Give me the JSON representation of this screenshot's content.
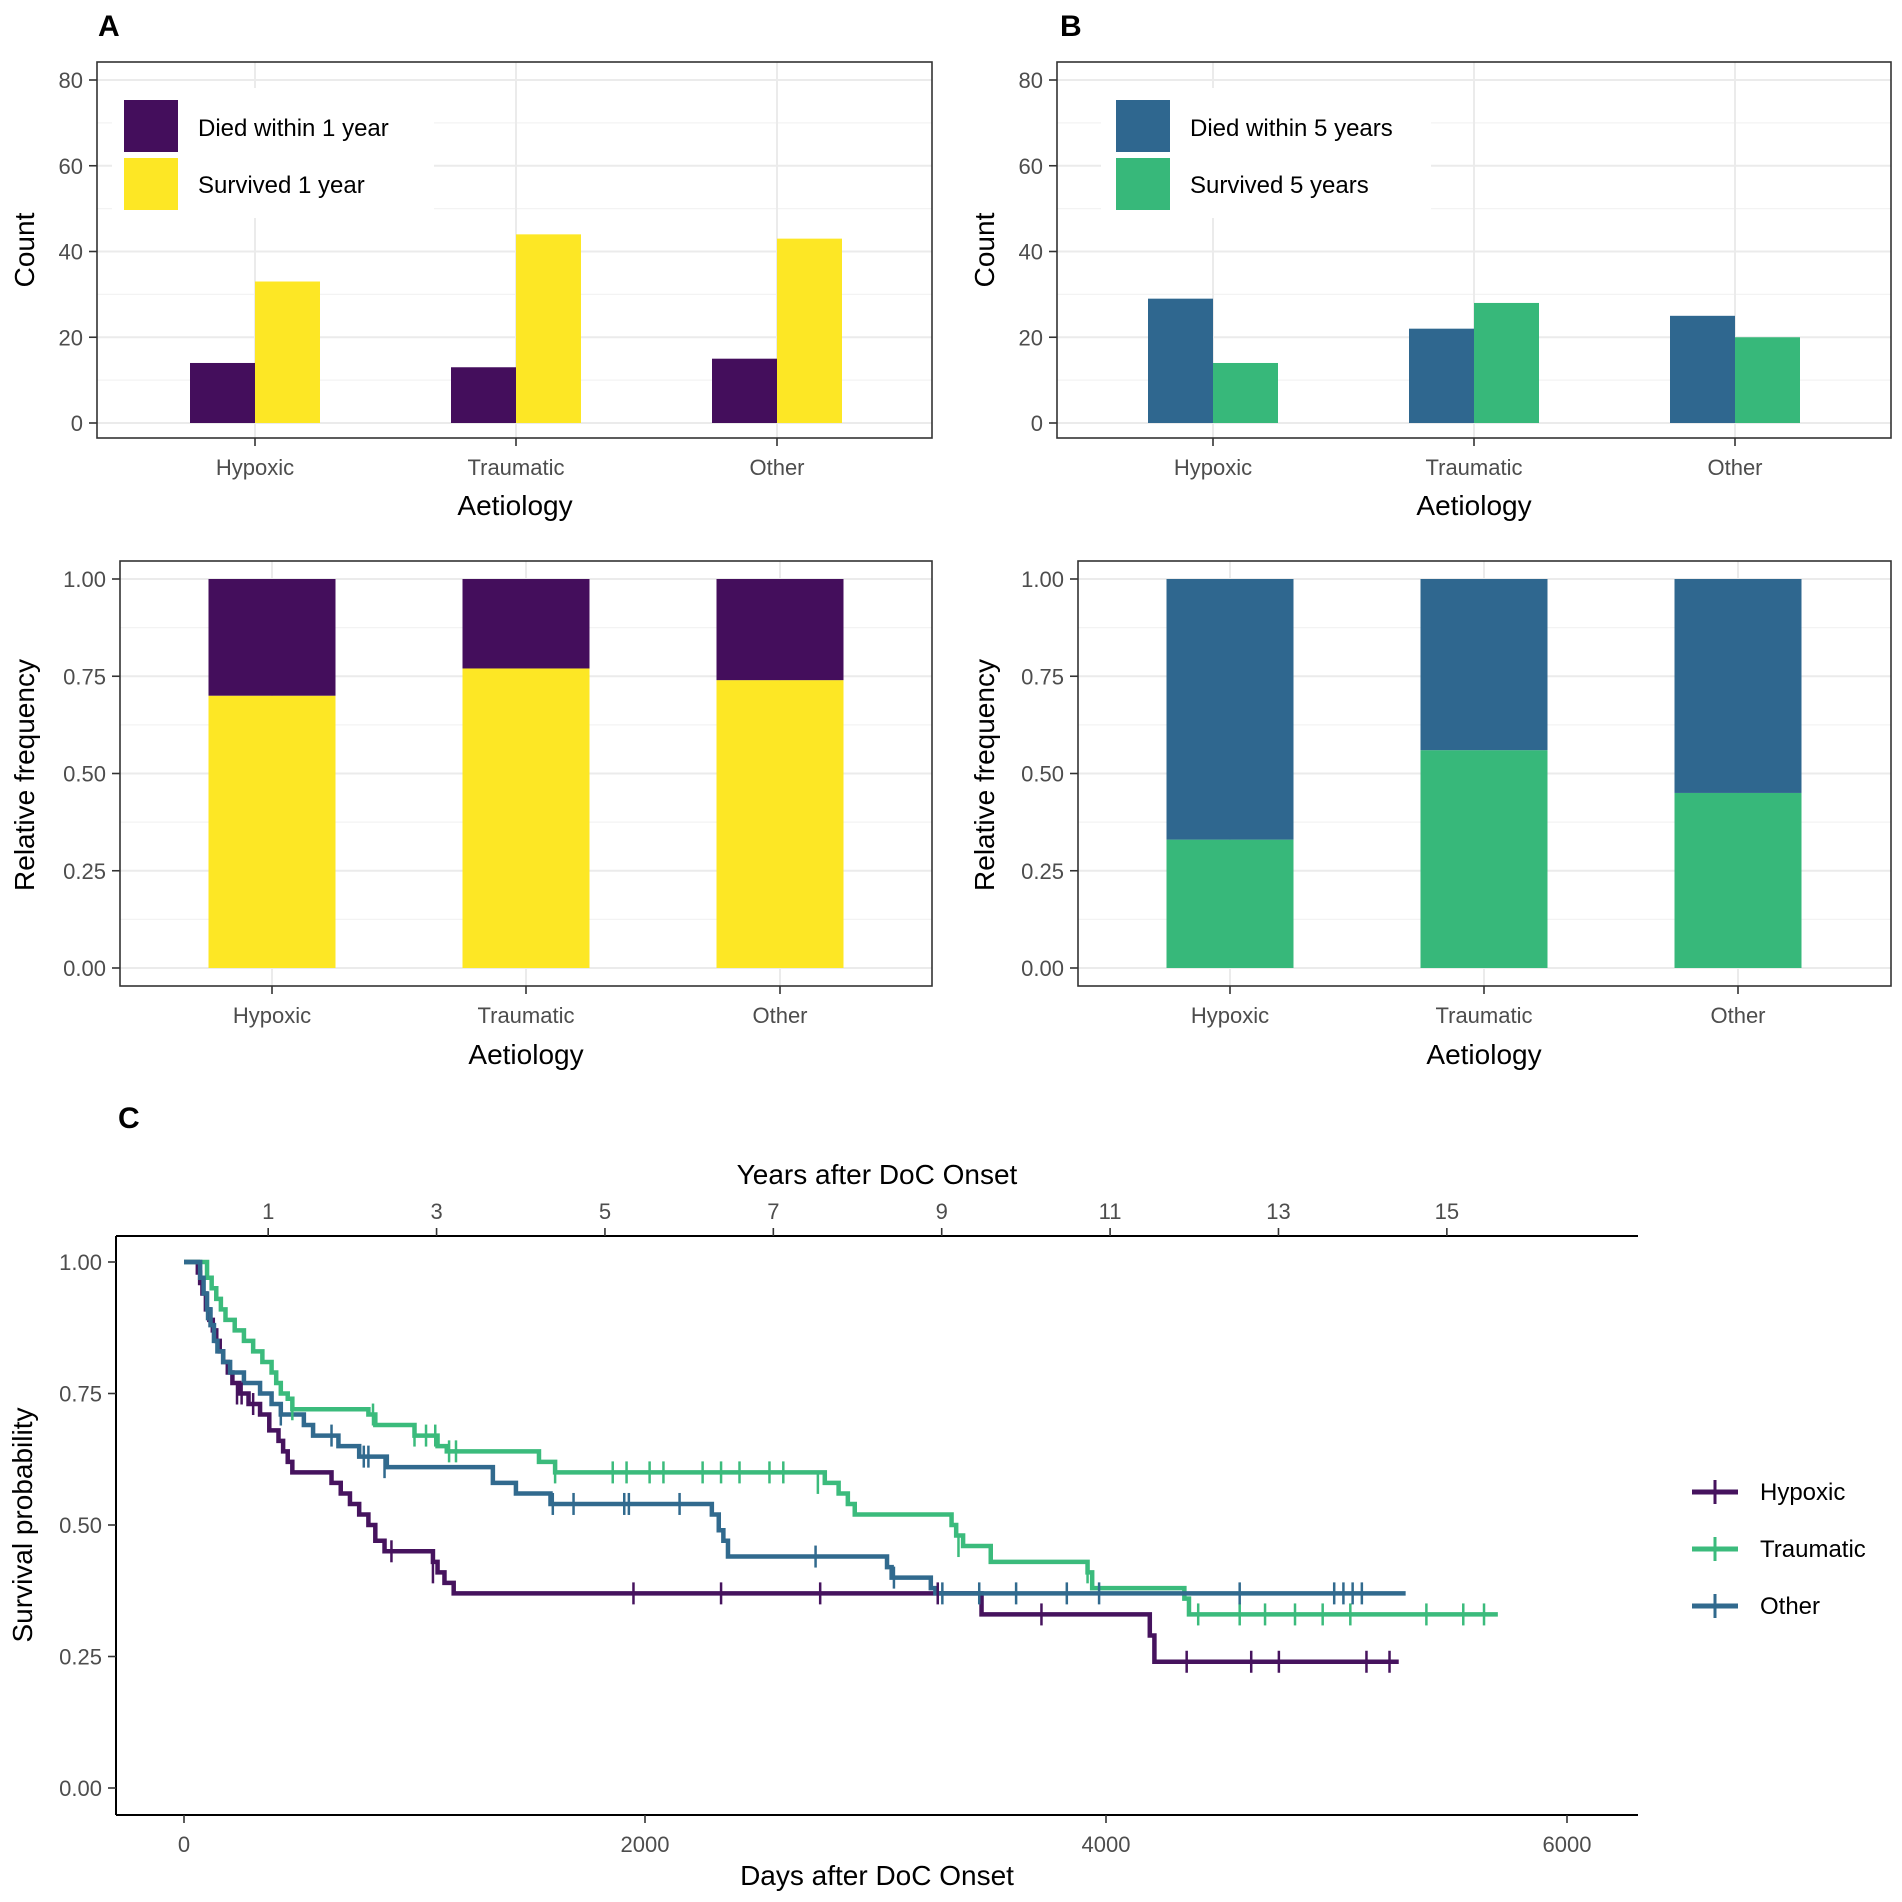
{
  "panels": {
    "A": {
      "letter": "A"
    },
    "B": {
      "letter": "B"
    },
    "C": {
      "letter": "C"
    }
  },
  "colors": {
    "died": "#440e5c",
    "survived_1y": "#fde725",
    "died_5y": "#2f678f",
    "survived_5y": "#37b87a",
    "hypoxic": "#46135e",
    "traumatic": "#3bbb7c",
    "other": "#316a8e"
  },
  "chart_data": [
    {
      "id": "A-count",
      "type": "bar",
      "title": "",
      "xlabel": "Aetiology",
      "ylabel": "Count",
      "categories": [
        "Hypoxic",
        "Traumatic",
        "Other"
      ],
      "ylim": [
        0,
        80
      ],
      "yticks": [
        "0",
        "20",
        "40",
        "60",
        "80"
      ],
      "series": [
        {
          "name": "Died within 1 year",
          "values": [
            14,
            13,
            15
          ]
        },
        {
          "name": "Survived 1 year",
          "values": [
            33,
            44,
            43
          ]
        }
      ]
    },
    {
      "id": "B-count",
      "type": "bar",
      "title": "",
      "xlabel": "Aetiology",
      "ylabel": "Count",
      "categories": [
        "Hypoxic",
        "Traumatic",
        "Other"
      ],
      "ylim": [
        0,
        80
      ],
      "yticks": [
        "0",
        "20",
        "40",
        "60",
        "80"
      ],
      "series": [
        {
          "name": "Died within 5 years",
          "values": [
            29,
            22,
            25
          ]
        },
        {
          "name": "Survived 5 years",
          "values": [
            14,
            28,
            20
          ]
        }
      ]
    },
    {
      "id": "A-relative",
      "type": "bar",
      "stacked": true,
      "xlabel": "Aetiology",
      "ylabel": "Relative frequency",
      "categories": [
        "Hypoxic",
        "Traumatic",
        "Other"
      ],
      "ylim": [
        0,
        1
      ],
      "yticks": [
        "0.00",
        "0.25",
        "0.50",
        "0.75",
        "1.00"
      ],
      "series": [
        {
          "name": "Survived 1 year",
          "values": [
            0.7,
            0.77,
            0.74
          ]
        },
        {
          "name": "Died within 1 year",
          "values": [
            0.3,
            0.23,
            0.26
          ]
        }
      ]
    },
    {
      "id": "B-relative",
      "type": "bar",
      "stacked": true,
      "xlabel": "Aetiology",
      "ylabel": "Relative frequency",
      "categories": [
        "Hypoxic",
        "Traumatic",
        "Other"
      ],
      "ylim": [
        0,
        1
      ],
      "yticks": [
        "0.00",
        "0.25",
        "0.50",
        "0.75",
        "1.00"
      ],
      "series": [
        {
          "name": "Survived 5 years",
          "values": [
            0.33,
            0.56,
            0.45
          ]
        },
        {
          "name": "Died within 5 years",
          "values": [
            0.67,
            0.44,
            0.55
          ]
        }
      ]
    },
    {
      "id": "C-survival",
      "type": "line",
      "step": true,
      "xlabel": "Days after DoC Onset",
      "x2label": "Years after DoC Onset",
      "ylabel": "Survival probability",
      "xlim": [
        -300,
        6300
      ],
      "ylim": [
        0,
        1
      ],
      "xticks": [
        0,
        2000,
        4000,
        6000
      ],
      "xtick_labels": [
        "0",
        "2000",
        "4000",
        "6000"
      ],
      "x2ticks": [
        1,
        3,
        5,
        7,
        9,
        11,
        13,
        15
      ],
      "x2tick_labels": [
        "1",
        "3",
        "5",
        "7",
        "9",
        "11",
        "13",
        "15"
      ],
      "yticks": [
        "0.00",
        "0.25",
        "0.50",
        "0.75",
        "1.00"
      ],
      "legend": [
        "Hypoxic",
        "Traumatic",
        "Other"
      ],
      "series": [
        {
          "name": "Hypoxic",
          "steps": [
            [
              0,
              1.0
            ],
            [
              60,
              0.98
            ],
            [
              70,
              0.96
            ],
            [
              80,
              0.94
            ],
            [
              95,
              0.91
            ],
            [
              110,
              0.89
            ],
            [
              125,
              0.87
            ],
            [
              140,
              0.85
            ],
            [
              155,
              0.83
            ],
            [
              170,
              0.81
            ],
            [
              190,
              0.79
            ],
            [
              210,
              0.77
            ],
            [
              240,
              0.75
            ],
            [
              280,
              0.73
            ],
            [
              330,
              0.71
            ],
            [
              370,
              0.68
            ],
            [
              410,
              0.66
            ],
            [
              430,
              0.64
            ],
            [
              450,
              0.62
            ],
            [
              470,
              0.6
            ],
            [
              640,
              0.58
            ],
            [
              680,
              0.56
            ],
            [
              720,
              0.54
            ],
            [
              760,
              0.52
            ],
            [
              800,
              0.5
            ],
            [
              830,
              0.47
            ],
            [
              870,
              0.45
            ],
            [
              1080,
              0.43
            ],
            [
              1100,
              0.41
            ],
            [
              1130,
              0.39
            ],
            [
              1170,
              0.37
            ],
            [
              3460,
              0.33
            ],
            [
              4190,
              0.29
            ],
            [
              4210,
              0.24
            ],
            [
              5270,
              0.24
            ]
          ],
          "censors": [
            [
              230,
              0.75
            ],
            [
              250,
              0.75
            ],
            [
              300,
              0.73
            ],
            [
              900,
              0.45
            ],
            [
              1080,
              0.41
            ],
            [
              1950,
              0.37
            ],
            [
              2330,
              0.37
            ],
            [
              2760,
              0.37
            ],
            [
              3270,
              0.37
            ],
            [
              3720,
              0.33
            ],
            [
              4350,
              0.24
            ],
            [
              4630,
              0.24
            ],
            [
              4750,
              0.24
            ],
            [
              5130,
              0.24
            ],
            [
              5230,
              0.24
            ]
          ]
        },
        {
          "name": "Traumatic",
          "steps": [
            [
              0,
              1.0
            ],
            [
              100,
              0.97
            ],
            [
              120,
              0.95
            ],
            [
              140,
              0.93
            ],
            [
              160,
              0.91
            ],
            [
              180,
              0.89
            ],
            [
              220,
              0.87
            ],
            [
              260,
              0.85
            ],
            [
              300,
              0.83
            ],
            [
              340,
              0.81
            ],
            [
              380,
              0.79
            ],
            [
              400,
              0.77
            ],
            [
              420,
              0.75
            ],
            [
              450,
              0.74
            ],
            [
              470,
              0.72
            ],
            [
              800,
              0.71
            ],
            [
              830,
              0.69
            ],
            [
              1000,
              0.67
            ],
            [
              1100,
              0.65
            ],
            [
              1140,
              0.64
            ],
            [
              1540,
              0.62
            ],
            [
              1610,
              0.6
            ],
            [
              2780,
              0.58
            ],
            [
              2840,
              0.56
            ],
            [
              2880,
              0.54
            ],
            [
              2910,
              0.52
            ],
            [
              3330,
              0.5
            ],
            [
              3350,
              0.48
            ],
            [
              3380,
              0.46
            ],
            [
              3500,
              0.43
            ],
            [
              3920,
              0.41
            ],
            [
              3940,
              0.38
            ],
            [
              4340,
              0.36
            ],
            [
              4360,
              0.33
            ],
            [
              5700,
              0.33
            ]
          ],
          "censors": [
            [
              470,
              0.72
            ],
            [
              820,
              0.71
            ],
            [
              1000,
              0.67
            ],
            [
              1050,
              0.67
            ],
            [
              1090,
              0.67
            ],
            [
              1150,
              0.64
            ],
            [
              1180,
              0.64
            ],
            [
              1610,
              0.6
            ],
            [
              1860,
              0.6
            ],
            [
              1920,
              0.6
            ],
            [
              2020,
              0.6
            ],
            [
              2080,
              0.6
            ],
            [
              2250,
              0.6
            ],
            [
              2330,
              0.6
            ],
            [
              2410,
              0.6
            ],
            [
              2540,
              0.6
            ],
            [
              2600,
              0.6
            ],
            [
              2750,
              0.58
            ],
            [
              3360,
              0.46
            ],
            [
              3920,
              0.41
            ],
            [
              4400,
              0.33
            ],
            [
              4580,
              0.33
            ],
            [
              4690,
              0.33
            ],
            [
              4820,
              0.33
            ],
            [
              4940,
              0.33
            ],
            [
              5060,
              0.33
            ],
            [
              5390,
              0.33
            ],
            [
              5550,
              0.33
            ],
            [
              5640,
              0.33
            ]
          ]
        },
        {
          "name": "Other",
          "steps": [
            [
              0,
              1.0
            ],
            [
              70,
              0.97
            ],
            [
              85,
              0.94
            ],
            [
              100,
              0.91
            ],
            [
              115,
              0.88
            ],
            [
              130,
              0.85
            ],
            [
              145,
              0.83
            ],
            [
              170,
              0.81
            ],
            [
              200,
              0.79
            ],
            [
              260,
              0.77
            ],
            [
              330,
              0.75
            ],
            [
              380,
              0.73
            ],
            [
              420,
              0.71
            ],
            [
              520,
              0.69
            ],
            [
              560,
              0.67
            ],
            [
              670,
              0.65
            ],
            [
              760,
              0.63
            ],
            [
              880,
              0.61
            ],
            [
              1340,
              0.58
            ],
            [
              1440,
              0.56
            ],
            [
              1590,
              0.54
            ],
            [
              2290,
              0.52
            ],
            [
              2320,
              0.49
            ],
            [
              2340,
              0.47
            ],
            [
              2360,
              0.44
            ],
            [
              3050,
              0.42
            ],
            [
              3070,
              0.4
            ],
            [
              3240,
              0.38
            ],
            [
              3260,
              0.37
            ],
            [
              5300,
              0.37
            ]
          ],
          "censors": [
            [
              100,
              0.91
            ],
            [
              420,
              0.71
            ],
            [
              640,
              0.67
            ],
            [
              780,
              0.63
            ],
            [
              800,
              0.63
            ],
            [
              870,
              0.61
            ],
            [
              1600,
              0.54
            ],
            [
              1690,
              0.54
            ],
            [
              1910,
              0.54
            ],
            [
              1930,
              0.54
            ],
            [
              2150,
              0.54
            ],
            [
              2740,
              0.44
            ],
            [
              3080,
              0.4
            ],
            [
              3290,
              0.37
            ],
            [
              3450,
              0.37
            ],
            [
              3610,
              0.37
            ],
            [
              3830,
              0.37
            ],
            [
              3970,
              0.37
            ],
            [
              4580,
              0.37
            ],
            [
              4990,
              0.37
            ],
            [
              5030,
              0.37
            ],
            [
              5070,
              0.37
            ],
            [
              5110,
              0.37
            ]
          ]
        }
      ]
    }
  ]
}
